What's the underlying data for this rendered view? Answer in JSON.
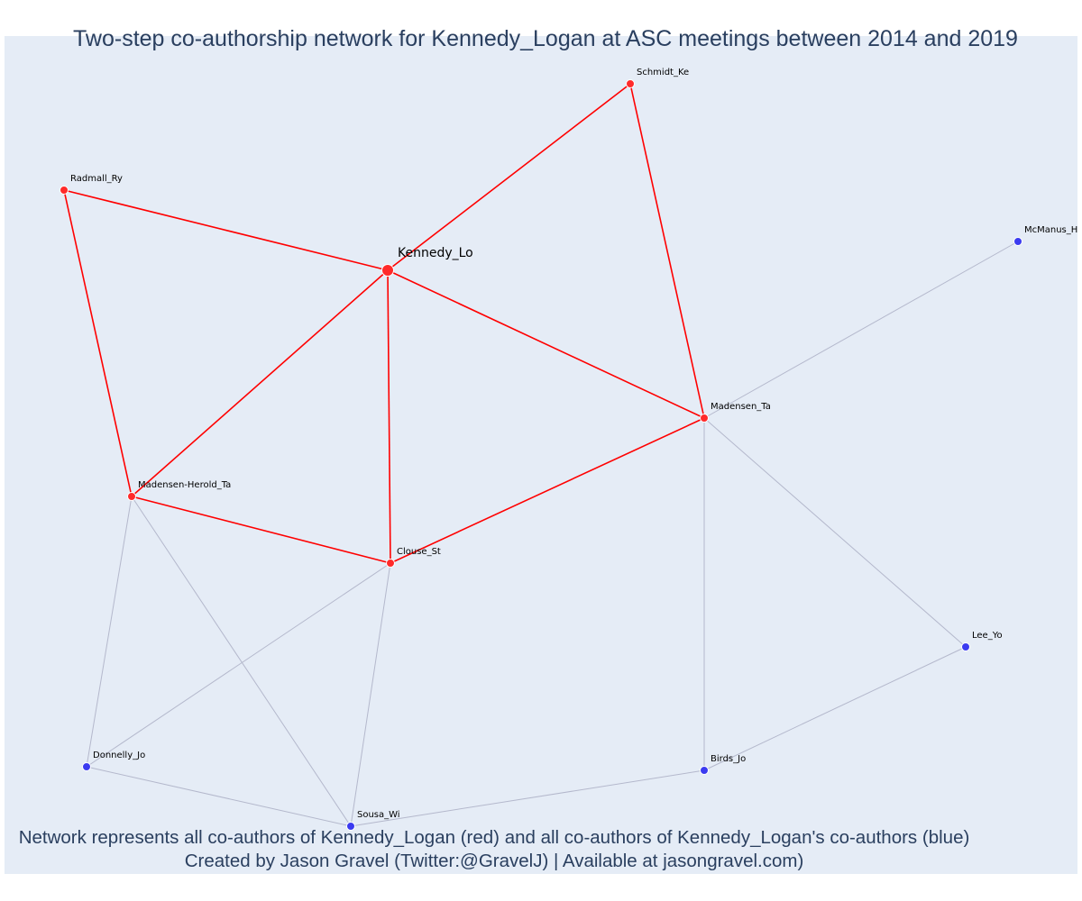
{
  "title": "Two-step co-authorship network for Kennedy_Logan at ASC meetings between 2014 and 2019",
  "caption": {
    "line1": "Network represents all co-authors of Kennedy_Logan (red) and all co-authors of Kennedy_Logan's co-authors (blue)",
    "line2": "Created by Jason Gravel (Twitter:@GravelJ) | Available at jasongravel.com)"
  },
  "colors": {
    "background": "#e5ecf6",
    "ego_edge": "#ff0000",
    "other_edge": "#b4b8cc",
    "red_node": "#ff2a2a",
    "blue_node": "#3b3bf0",
    "title_text": "#2a3f5f"
  },
  "nodes": [
    {
      "id": "Kennedy_Lo",
      "group": "red",
      "ego": true
    },
    {
      "id": "Schmidt_Ke",
      "group": "red"
    },
    {
      "id": "Radmall_Ry",
      "group": "red"
    },
    {
      "id": "Madensen_Ta",
      "group": "red"
    },
    {
      "id": "Madensen-Herold_Ta",
      "group": "red"
    },
    {
      "id": "Clouse_St",
      "group": "red"
    },
    {
      "id": "McManus_Ha",
      "group": "blue"
    },
    {
      "id": "Lee_Yo",
      "group": "blue"
    },
    {
      "id": "Birds_Jo",
      "group": "blue"
    },
    {
      "id": "Donnelly_Jo",
      "group": "blue"
    },
    {
      "id": "Sousa_Wi",
      "group": "blue"
    }
  ],
  "edges": [
    {
      "source": "Kennedy_Lo",
      "target": "Schmidt_Ke",
      "type": "ego"
    },
    {
      "source": "Kennedy_Lo",
      "target": "Radmall_Ry",
      "type": "ego"
    },
    {
      "source": "Kennedy_Lo",
      "target": "Madensen_Ta",
      "type": "ego"
    },
    {
      "source": "Kennedy_Lo",
      "target": "Madensen-Herold_Ta",
      "type": "ego"
    },
    {
      "source": "Kennedy_Lo",
      "target": "Clouse_St",
      "type": "ego"
    },
    {
      "source": "Schmidt_Ke",
      "target": "Madensen_Ta",
      "type": "ego"
    },
    {
      "source": "Radmall_Ry",
      "target": "Madensen-Herold_Ta",
      "type": "ego"
    },
    {
      "source": "Madensen-Herold_Ta",
      "target": "Clouse_St",
      "type": "ego"
    },
    {
      "source": "Clouse_St",
      "target": "Madensen_Ta",
      "type": "ego"
    },
    {
      "source": "Madensen_Ta",
      "target": "McManus_Ha",
      "type": "other"
    },
    {
      "source": "Madensen_Ta",
      "target": "Lee_Yo",
      "type": "other"
    },
    {
      "source": "Madensen_Ta",
      "target": "Birds_Jo",
      "type": "other"
    },
    {
      "source": "Lee_Yo",
      "target": "Birds_Jo",
      "type": "other"
    },
    {
      "source": "Birds_Jo",
      "target": "Sousa_Wi",
      "type": "other"
    },
    {
      "source": "Clouse_St",
      "target": "Donnelly_Jo",
      "type": "other"
    },
    {
      "source": "Clouse_St",
      "target": "Sousa_Wi",
      "type": "other"
    },
    {
      "source": "Madensen-Herold_Ta",
      "target": "Donnelly_Jo",
      "type": "other"
    },
    {
      "source": "Madensen-Herold_Ta",
      "target": "Sousa_Wi",
      "type": "other"
    },
    {
      "source": "Donnelly_Jo",
      "target": "Sousa_Wi",
      "type": "other"
    }
  ]
}
